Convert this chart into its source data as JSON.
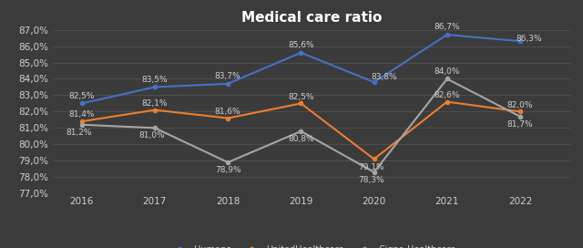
{
  "title": "Medical care ratio",
  "years": [
    2016,
    2017,
    2018,
    2019,
    2020,
    2021,
    2022
  ],
  "humana": [
    82.5,
    83.5,
    83.7,
    85.6,
    83.8,
    86.7,
    86.3
  ],
  "unitedhealthcare": [
    81.4,
    82.1,
    81.6,
    82.5,
    79.1,
    82.6,
    82.0
  ],
  "cigna": [
    81.2,
    81.0,
    78.9,
    80.8,
    78.3,
    84.0,
    81.7
  ],
  "humana_color": "#4472C4",
  "unitedhealthcare_color": "#ED7D31",
  "cigna_color": "#A5A5A5",
  "background_color": "#3B3B3B",
  "text_color": "#D0D0D0",
  "grid_color": "#555555",
  "ylim": [
    77.0,
    87.0
  ],
  "yticks": [
    77.0,
    78.0,
    79.0,
    80.0,
    81.0,
    82.0,
    83.0,
    84.0,
    85.0,
    86.0,
    87.0
  ],
  "title_fontsize": 11,
  "label_fontsize": 6.5,
  "legend_fontsize": 7,
  "tick_fontsize": 7.5,
  "xlim": [
    2015.6,
    2022.7
  ]
}
